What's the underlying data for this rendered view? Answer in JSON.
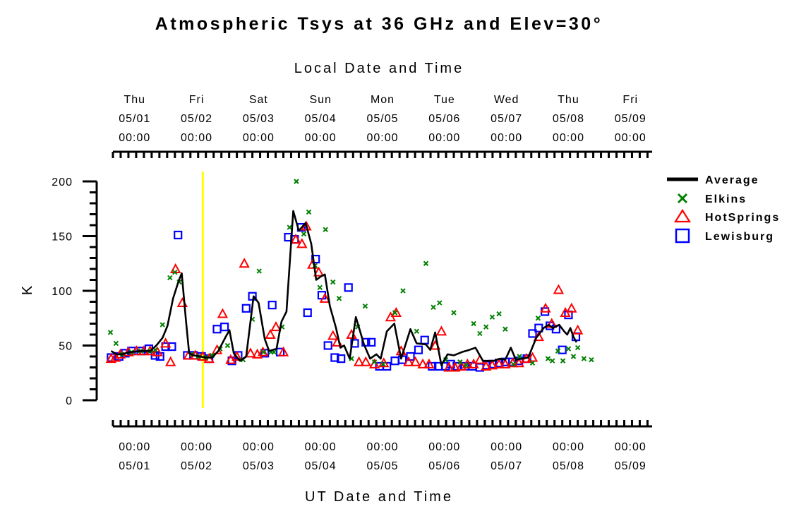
{
  "chart_data": {
    "type": "scatter",
    "title": "Atmospheric Tsys at 36 GHz and Elev=30°",
    "top_axis_title": "Local Date and Time",
    "xlabel": "UT Date and Time",
    "ylabel": "K",
    "ylim": [
      0,
      200
    ],
    "y_ticks": [
      "0",
      "50",
      "100",
      "150",
      "200"
    ],
    "x_range_days": [
      0,
      8.7
    ],
    "top_tick_labels": [
      {
        "day": "Thu",
        "date": "05/01",
        "time": "00:00"
      },
      {
        "day": "Fri",
        "date": "05/02",
        "time": "00:00"
      },
      {
        "day": "Sat",
        "date": "05/03",
        "time": "00:00"
      },
      {
        "day": "Sun",
        "date": "05/04",
        "time": "00:00"
      },
      {
        "day": "Mon",
        "date": "05/05",
        "time": "00:00"
      },
      {
        "day": "Tue",
        "date": "05/06",
        "time": "00:00"
      },
      {
        "day": "Wed",
        "date": "05/07",
        "time": "00:00"
      },
      {
        "day": "Thu",
        "date": "05/08",
        "time": "00:00"
      },
      {
        "day": "Fri",
        "date": "05/09",
        "time": "00:00"
      }
    ],
    "bottom_tick_labels": [
      {
        "time": "00:00",
        "date": "05/01"
      },
      {
        "time": "00:00",
        "date": "05/02"
      },
      {
        "time": "00:00",
        "date": "05/03"
      },
      {
        "time": "00:00",
        "date": "05/04"
      },
      {
        "time": "00:00",
        "date": "05/05"
      },
      {
        "time": "00:00",
        "date": "05/06"
      },
      {
        "time": "00:00",
        "date": "05/07"
      },
      {
        "time": "00:00",
        "date": "05/08"
      },
      {
        "time": "00:00",
        "date": "05/09"
      }
    ],
    "vertical_marker": {
      "x_day": 1.45,
      "color": "#ffff00"
    },
    "series": [
      {
        "name": "Average",
        "style": "line",
        "color": "#000000",
        "points": [
          [
            -0.03,
            45
          ],
          [
            0.06,
            42
          ],
          [
            0.15,
            42
          ],
          [
            0.28,
            44
          ],
          [
            0.45,
            45
          ],
          [
            0.6,
            45
          ],
          [
            0.7,
            50
          ],
          [
            0.8,
            57
          ],
          [
            0.88,
            68
          ],
          [
            0.97,
            93
          ],
          [
            1.06,
            109
          ],
          [
            1.11,
            116
          ],
          [
            1.18,
            72
          ],
          [
            1.23,
            43
          ],
          [
            1.3,
            41
          ],
          [
            1.4,
            40
          ],
          [
            1.5,
            39
          ],
          [
            1.6,
            39
          ],
          [
            1.7,
            45
          ],
          [
            1.82,
            58
          ],
          [
            1.88,
            64
          ],
          [
            1.95,
            43
          ],
          [
            2.05,
            36
          ],
          [
            2.15,
            40
          ],
          [
            2.27,
            95
          ],
          [
            2.35,
            89
          ],
          [
            2.45,
            56
          ],
          [
            2.52,
            45
          ],
          [
            2.64,
            47
          ],
          [
            2.72,
            72
          ],
          [
            2.8,
            81
          ],
          [
            2.91,
            173
          ],
          [
            3.0,
            155
          ],
          [
            3.11,
            162
          ],
          [
            3.2,
            143
          ],
          [
            3.28,
            110
          ],
          [
            3.35,
            113
          ],
          [
            3.42,
            115
          ],
          [
            3.5,
            86
          ],
          [
            3.6,
            66
          ],
          [
            3.67,
            48
          ],
          [
            3.73,
            50
          ],
          [
            3.82,
            38
          ],
          [
            3.92,
            76
          ],
          [
            4.05,
            51
          ],
          [
            4.15,
            38
          ],
          [
            4.25,
            42
          ],
          [
            4.32,
            38
          ],
          [
            4.42,
            63
          ],
          [
            4.54,
            70
          ],
          [
            4.65,
            38
          ],
          [
            4.8,
            65
          ],
          [
            4.9,
            52
          ],
          [
            5.05,
            51
          ],
          [
            5.12,
            46
          ],
          [
            5.2,
            62
          ],
          [
            5.3,
            32
          ],
          [
            5.4,
            42
          ],
          [
            5.5,
            41
          ],
          [
            5.63,
            44
          ],
          [
            5.75,
            46
          ],
          [
            5.85,
            48
          ],
          [
            5.97,
            36
          ],
          [
            6.05,
            36
          ],
          [
            6.15,
            36
          ],
          [
            6.24,
            38
          ],
          [
            6.33,
            37
          ],
          [
            6.42,
            48
          ],
          [
            6.5,
            37
          ],
          [
            6.6,
            38
          ],
          [
            6.7,
            39
          ],
          [
            6.83,
            57
          ],
          [
            6.95,
            66
          ],
          [
            7.03,
            69
          ],
          [
            7.1,
            66
          ],
          [
            7.2,
            69
          ],
          [
            7.28,
            63
          ],
          [
            7.33,
            60
          ],
          [
            7.38,
            66
          ],
          [
            7.43,
            58
          ],
          [
            7.48,
            53
          ]
        ]
      },
      {
        "name": "Elkins",
        "style": "x-marker",
        "color": "#008000",
        "points": [
          [
            -0.04,
            62
          ],
          [
            0.05,
            52
          ],
          [
            0.15,
            42
          ],
          [
            0.3,
            44
          ],
          [
            0.45,
            45
          ],
          [
            0.6,
            45
          ],
          [
            0.68,
            46
          ],
          [
            0.8,
            69
          ],
          [
            0.92,
            112
          ],
          [
            1.0,
            117
          ],
          [
            1.07,
            108
          ],
          [
            1.27,
            42
          ],
          [
            1.38,
            40
          ],
          [
            1.5,
            39
          ],
          [
            1.6,
            41
          ],
          [
            1.73,
            47
          ],
          [
            1.85,
            50
          ],
          [
            2.1,
            37
          ],
          [
            2.25,
            74
          ],
          [
            2.36,
            118
          ],
          [
            2.43,
            44
          ],
          [
            2.55,
            44
          ],
          [
            2.6,
            44
          ],
          [
            2.73,
            67
          ],
          [
            2.85,
            158
          ],
          [
            2.96,
            200
          ],
          [
            3.08,
            152
          ],
          [
            3.16,
            172
          ],
          [
            3.26,
            123
          ],
          [
            3.34,
            103
          ],
          [
            3.43,
            156
          ],
          [
            3.55,
            108
          ],
          [
            3.65,
            93
          ],
          [
            3.85,
            38
          ],
          [
            3.95,
            67
          ],
          [
            4.07,
            86
          ],
          [
            4.22,
            35
          ],
          [
            4.36,
            33
          ],
          [
            4.55,
            80
          ],
          [
            4.68,
            100
          ],
          [
            4.9,
            63
          ],
          [
            5.05,
            125
          ],
          [
            5.17,
            85
          ],
          [
            5.27,
            89
          ],
          [
            5.37,
            37
          ],
          [
            5.5,
            80
          ],
          [
            5.6,
            35
          ],
          [
            5.7,
            32
          ],
          [
            5.82,
            70
          ],
          [
            5.92,
            61
          ],
          [
            6.02,
            67
          ],
          [
            6.12,
            76
          ],
          [
            6.23,
            79
          ],
          [
            6.33,
            65
          ],
          [
            6.46,
            33
          ],
          [
            6.56,
            40
          ],
          [
            6.77,
            34
          ],
          [
            6.86,
            75
          ],
          [
            7.02,
            38
          ],
          [
            7.09,
            36
          ],
          [
            7.18,
            45
          ],
          [
            7.26,
            36
          ],
          [
            7.35,
            47
          ],
          [
            7.43,
            40
          ],
          [
            7.5,
            48
          ],
          [
            7.6,
            38
          ],
          [
            7.72,
            37
          ]
        ]
      },
      {
        "name": "HotSprings",
        "style": "triangle",
        "color": "#ff0000",
        "points": [
          [
            -0.03,
            38
          ],
          [
            0.04,
            39
          ],
          [
            0.12,
            42
          ],
          [
            0.25,
            44
          ],
          [
            0.38,
            45
          ],
          [
            0.5,
            45
          ],
          [
            0.6,
            45
          ],
          [
            0.72,
            44
          ],
          [
            0.85,
            52
          ],
          [
            0.93,
            35
          ],
          [
            1.01,
            120
          ],
          [
            1.12,
            89
          ],
          [
            1.22,
            41
          ],
          [
            1.33,
            41
          ],
          [
            1.45,
            40
          ],
          [
            1.55,
            38
          ],
          [
            1.68,
            46
          ],
          [
            1.77,
            79
          ],
          [
            1.9,
            37
          ],
          [
            2.0,
            40
          ],
          [
            2.12,
            125
          ],
          [
            2.22,
            43
          ],
          [
            2.33,
            42
          ],
          [
            2.42,
            44
          ],
          [
            2.54,
            60
          ],
          [
            2.63,
            67
          ],
          [
            2.75,
            44
          ],
          [
            2.95,
            147
          ],
          [
            3.05,
            143
          ],
          [
            3.12,
            159
          ],
          [
            3.22,
            124
          ],
          [
            3.32,
            117
          ],
          [
            3.42,
            93
          ],
          [
            3.55,
            59
          ],
          [
            3.62,
            53
          ],
          [
            3.85,
            60
          ],
          [
            3.97,
            35
          ],
          [
            4.08,
            35
          ],
          [
            4.22,
            33
          ],
          [
            4.37,
            34
          ],
          [
            4.48,
            76
          ],
          [
            4.57,
            80
          ],
          [
            4.65,
            45
          ],
          [
            4.77,
            35
          ],
          [
            4.88,
            35
          ],
          [
            5.0,
            33
          ],
          [
            5.1,
            33
          ],
          [
            5.2,
            50
          ],
          [
            5.3,
            63
          ],
          [
            5.42,
            30
          ],
          [
            5.52,
            30
          ],
          [
            5.62,
            31
          ],
          [
            5.72,
            33
          ],
          [
            5.82,
            33
          ],
          [
            5.92,
            37
          ],
          [
            6.02,
            31
          ],
          [
            6.12,
            32
          ],
          [
            6.23,
            33
          ],
          [
            6.33,
            33
          ],
          [
            6.45,
            34
          ],
          [
            6.55,
            34
          ],
          [
            6.67,
            38
          ],
          [
            6.77,
            39
          ],
          [
            6.87,
            58
          ],
          [
            6.98,
            84
          ],
          [
            7.08,
            70
          ],
          [
            7.19,
            101
          ],
          [
            7.3,
            80
          ],
          [
            7.4,
            84
          ],
          [
            7.5,
            64
          ]
        ]
      },
      {
        "name": "Lewisburg",
        "style": "square",
        "color": "#0000ff",
        "points": [
          [
            -0.03,
            39
          ],
          [
            0.1,
            40
          ],
          [
            0.2,
            43
          ],
          [
            0.3,
            45
          ],
          [
            0.45,
            45
          ],
          [
            0.58,
            47
          ],
          [
            0.68,
            41
          ],
          [
            0.76,
            40
          ],
          [
            0.85,
            49
          ],
          [
            0.95,
            49
          ],
          [
            1.05,
            151
          ],
          [
            1.2,
            41
          ],
          [
            1.3,
            41
          ],
          [
            1.43,
            40
          ],
          [
            1.55,
            38
          ],
          [
            1.68,
            65
          ],
          [
            1.8,
            67
          ],
          [
            1.92,
            36
          ],
          [
            2.02,
            41
          ],
          [
            2.15,
            84
          ],
          [
            2.25,
            95
          ],
          [
            2.45,
            43
          ],
          [
            2.57,
            87
          ],
          [
            2.7,
            44
          ],
          [
            2.83,
            149
          ],
          [
            2.93,
            147
          ],
          [
            3.04,
            158
          ],
          [
            3.14,
            80
          ],
          [
            3.27,
            129
          ],
          [
            3.37,
            96
          ],
          [
            3.47,
            50
          ],
          [
            3.58,
            39
          ],
          [
            3.68,
            38
          ],
          [
            3.8,
            103
          ],
          [
            3.9,
            52
          ],
          [
            4.08,
            53
          ],
          [
            4.17,
            53
          ],
          [
            4.3,
            31
          ],
          [
            4.42,
            31
          ],
          [
            4.55,
            36
          ],
          [
            4.67,
            37
          ],
          [
            4.8,
            40
          ],
          [
            4.93,
            46
          ],
          [
            5.03,
            55
          ],
          [
            5.15,
            31
          ],
          [
            5.25,
            31
          ],
          [
            5.37,
            31
          ],
          [
            5.45,
            33
          ],
          [
            5.55,
            31
          ],
          [
            5.68,
            31
          ],
          [
            5.8,
            31
          ],
          [
            5.92,
            30
          ],
          [
            6.03,
            32
          ],
          [
            6.13,
            33
          ],
          [
            6.23,
            34
          ],
          [
            6.33,
            35
          ],
          [
            6.45,
            35
          ],
          [
            6.55,
            36
          ],
          [
            6.68,
            38
          ],
          [
            6.77,
            61
          ],
          [
            6.87,
            66
          ],
          [
            6.97,
            81
          ],
          [
            7.05,
            68
          ],
          [
            7.15,
            65
          ],
          [
            7.25,
            46
          ],
          [
            7.35,
            78
          ],
          [
            7.47,
            58
          ]
        ]
      }
    ]
  }
}
